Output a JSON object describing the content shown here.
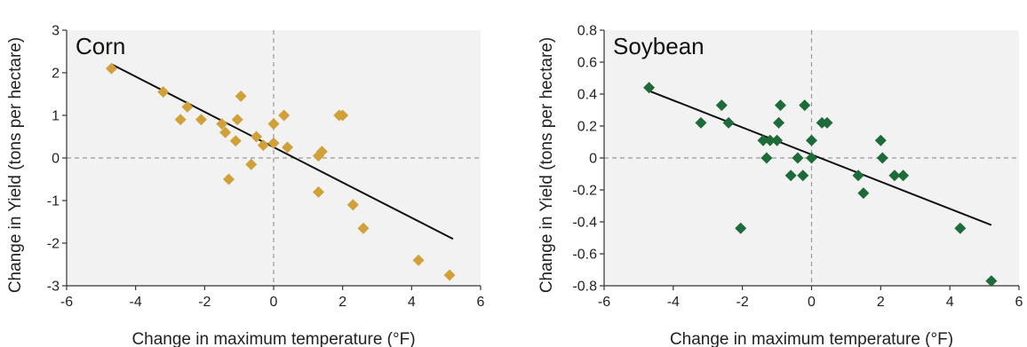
{
  "colors": {
    "plot_background": "#f2f2f2",
    "zero_line": "#9a9a9a",
    "trend_line": "#111111",
    "corn": "#d1a139",
    "soybean": "#1e6b3a"
  },
  "chart_data": [
    {
      "type": "scatter",
      "title": "Corn",
      "xlabel": "Change in maximum temperature (°F)",
      "ylabel": "Change in Yield (tons per hectare)",
      "xlim": [
        -6,
        6
      ],
      "ylim": [
        -3,
        3
      ],
      "xticks": [
        -6,
        -4,
        -2,
        0,
        2,
        4,
        6
      ],
      "yticks": [
        3,
        2,
        1,
        0,
        -1,
        -2,
        -3
      ],
      "ytick_labels": [
        "3",
        "2",
        "1",
        "0",
        "-1",
        "-2",
        "-3"
      ],
      "grid": false,
      "marker": "diamond",
      "color": "#d1a139",
      "trend_line": [
        {
          "x": -4.7,
          "y": 2.2
        },
        {
          "x": 5.2,
          "y": -1.9
        }
      ],
      "points": [
        {
          "x": -4.7,
          "y": 2.1
        },
        {
          "x": -3.2,
          "y": 1.55
        },
        {
          "x": -2.7,
          "y": 0.9
        },
        {
          "x": -2.5,
          "y": 1.2
        },
        {
          "x": -2.1,
          "y": 0.9
        },
        {
          "x": -1.5,
          "y": 0.8
        },
        {
          "x": -1.4,
          "y": 0.6
        },
        {
          "x": -1.3,
          "y": -0.5
        },
        {
          "x": -1.1,
          "y": 0.4
        },
        {
          "x": -1.05,
          "y": 0.9
        },
        {
          "x": -0.95,
          "y": 1.45
        },
        {
          "x": -0.65,
          "y": -0.15
        },
        {
          "x": -0.5,
          "y": 0.5
        },
        {
          "x": -0.3,
          "y": 0.3
        },
        {
          "x": 0.0,
          "y": 0.8
        },
        {
          "x": 0.0,
          "y": 0.35
        },
        {
          "x": 0.3,
          "y": 1.0
        },
        {
          "x": 0.4,
          "y": 0.25
        },
        {
          "x": 1.3,
          "y": -0.8
        },
        {
          "x": 1.3,
          "y": 0.05
        },
        {
          "x": 1.4,
          "y": 0.15
        },
        {
          "x": 1.9,
          "y": 1.0
        },
        {
          "x": 2.0,
          "y": 1.0
        },
        {
          "x": 2.3,
          "y": -1.1
        },
        {
          "x": 2.6,
          "y": -1.65
        },
        {
          "x": 4.2,
          "y": -2.4
        },
        {
          "x": 5.1,
          "y": -2.75
        }
      ]
    },
    {
      "type": "scatter",
      "title": "Soybean",
      "xlabel": "Change in maximum temperature (°F)",
      "ylabel": "Change in Yield (tons per hectare)",
      "xlim": [
        -6,
        6
      ],
      "ylim": [
        -0.8,
        0.8
      ],
      "xticks": [
        -6,
        -4,
        -2,
        0,
        2,
        4,
        6
      ],
      "yticks": [
        0.8,
        0.6,
        0.4,
        0.2,
        0,
        -0.2,
        -0.4,
        -0.6,
        -0.8
      ],
      "ytick_labels": [
        "0.8",
        "0.6",
        "0.4",
        "0.2",
        "0",
        "-0.2",
        "-0.4",
        "-0.6",
        "-0.8"
      ],
      "grid": false,
      "marker": "diamond",
      "color": "#1e6b3a",
      "trend_line": [
        {
          "x": -4.7,
          "y": 0.42
        },
        {
          "x": 5.2,
          "y": -0.42
        }
      ],
      "points": [
        {
          "x": -4.7,
          "y": 0.44
        },
        {
          "x": -3.2,
          "y": 0.22
        },
        {
          "x": -2.6,
          "y": 0.33
        },
        {
          "x": -2.4,
          "y": 0.22
        },
        {
          "x": -2.05,
          "y": -0.44
        },
        {
          "x": -1.4,
          "y": 0.11
        },
        {
          "x": -1.3,
          "y": 0.0
        },
        {
          "x": -1.2,
          "y": 0.11
        },
        {
          "x": -1.0,
          "y": 0.11
        },
        {
          "x": -0.95,
          "y": 0.22
        },
        {
          "x": -0.9,
          "y": 0.33
        },
        {
          "x": -0.6,
          "y": -0.11
        },
        {
          "x": -0.4,
          "y": 0.0
        },
        {
          "x": -0.25,
          "y": -0.11
        },
        {
          "x": -0.2,
          "y": 0.33
        },
        {
          "x": 0.0,
          "y": 0.0
        },
        {
          "x": 0.0,
          "y": 0.11
        },
        {
          "x": 0.3,
          "y": 0.22
        },
        {
          "x": 0.45,
          "y": 0.22
        },
        {
          "x": 1.35,
          "y": -0.11
        },
        {
          "x": 1.5,
          "y": -0.22
        },
        {
          "x": 2.0,
          "y": 0.11
        },
        {
          "x": 2.05,
          "y": 0.0
        },
        {
          "x": 2.4,
          "y": -0.11
        },
        {
          "x": 2.65,
          "y": -0.11
        },
        {
          "x": 4.3,
          "y": -0.44
        },
        {
          "x": 5.2,
          "y": -0.77
        }
      ]
    }
  ]
}
